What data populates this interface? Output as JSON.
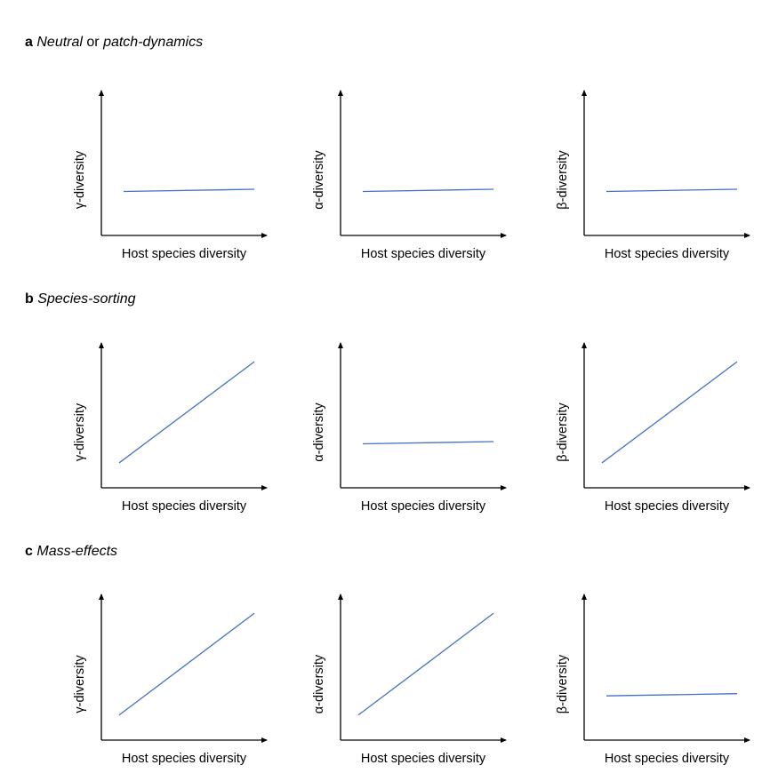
{
  "panels": [
    {
      "letter": "a",
      "title_parts": [
        {
          "text": "Neutral",
          "italic": true
        },
        {
          "text": " or ",
          "italic": false
        },
        {
          "text": "patch-dynamics",
          "italic": true
        }
      ],
      "plots": [
        {
          "ylabel": "γ-diversity",
          "xlabel": "Host species diversity",
          "trend": "flat"
        },
        {
          "ylabel": "α-diversity",
          "xlabel": "Host species diversity",
          "trend": "flat"
        },
        {
          "ylabel": "β-diversity",
          "xlabel": "Host species diversity",
          "trend": "flat"
        }
      ]
    },
    {
      "letter": "b",
      "title_parts": [
        {
          "text": "Species-sorting",
          "italic": true
        }
      ],
      "plots": [
        {
          "ylabel": "γ-diversity",
          "xlabel": "Host species diversity",
          "trend": "increasing"
        },
        {
          "ylabel": "α-diversity",
          "xlabel": "Host species diversity",
          "trend": "flat"
        },
        {
          "ylabel": "β-diversity",
          "xlabel": "Host species diversity",
          "trend": "increasing"
        }
      ]
    },
    {
      "letter": "c",
      "title_parts": [
        {
          "text": "Mass-effects",
          "italic": true
        }
      ],
      "plots": [
        {
          "ylabel": "γ-diversity",
          "xlabel": "Host species diversity",
          "trend": "increasing"
        },
        {
          "ylabel": "α-diversity",
          "xlabel": "Host species diversity",
          "trend": "increasing"
        },
        {
          "ylabel": "β-diversity",
          "xlabel": "Host species diversity",
          "trend": "flat"
        }
      ]
    }
  ],
  "colors": {
    "line": "#4472c4",
    "axis": "#000000"
  }
}
